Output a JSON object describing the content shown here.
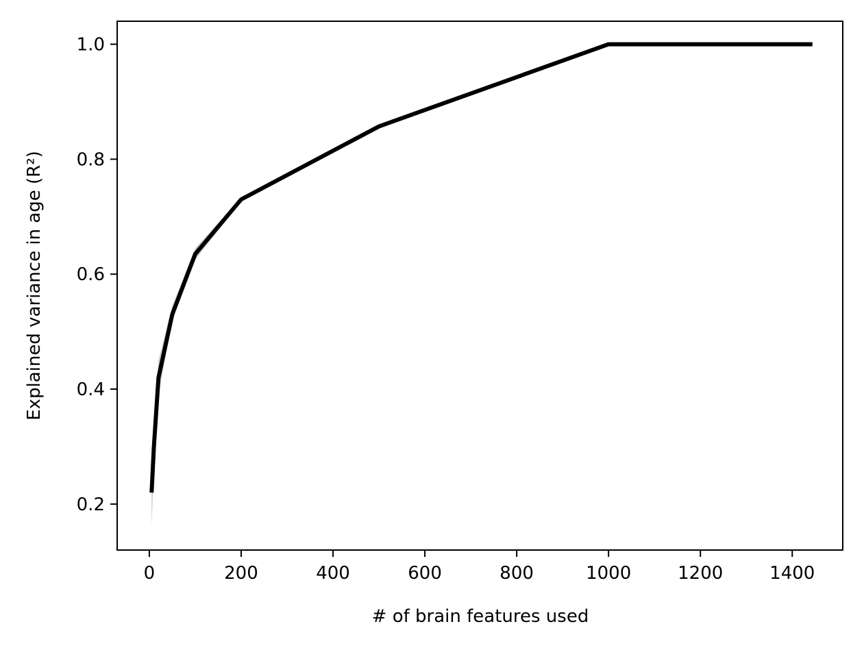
{
  "chart_data": {
    "type": "line",
    "title": "",
    "xlabel": "# of brain features used",
    "ylabel": "Explained variance in age (R²)",
    "xlim": [
      -70,
      1510
    ],
    "ylim": [
      0.12,
      1.04
    ],
    "x_ticks": [
      0,
      200,
      400,
      600,
      800,
      1000,
      1200,
      1400
    ],
    "y_ticks": [
      0.2,
      0.4,
      0.6,
      0.8,
      1.0
    ],
    "x_tick_labels": [
      "0",
      "200",
      "400",
      "600",
      "800",
      "1000",
      "1200",
      "1400"
    ],
    "y_tick_labels": [
      "0.2",
      "0.4",
      "0.6",
      "0.8",
      "1.0"
    ],
    "grid": false,
    "legend": false,
    "colors": {
      "line": "#000000",
      "band": "#c8c8c8"
    },
    "series": [
      {
        "x": [
          5,
          10,
          20,
          50,
          100,
          200,
          500,
          1000,
          1444
        ],
        "y": [
          0.22,
          0.3,
          0.42,
          0.53,
          0.635,
          0.73,
          0.857,
          1.0,
          1.0
        ],
        "y_lower": [
          0.16,
          0.27,
          0.39,
          0.52,
          0.625,
          0.727,
          0.855,
          1.0,
          1.0
        ],
        "y_upper": [
          0.28,
          0.33,
          0.45,
          0.545,
          0.645,
          0.733,
          0.859,
          1.0,
          1.0
        ]
      }
    ]
  }
}
